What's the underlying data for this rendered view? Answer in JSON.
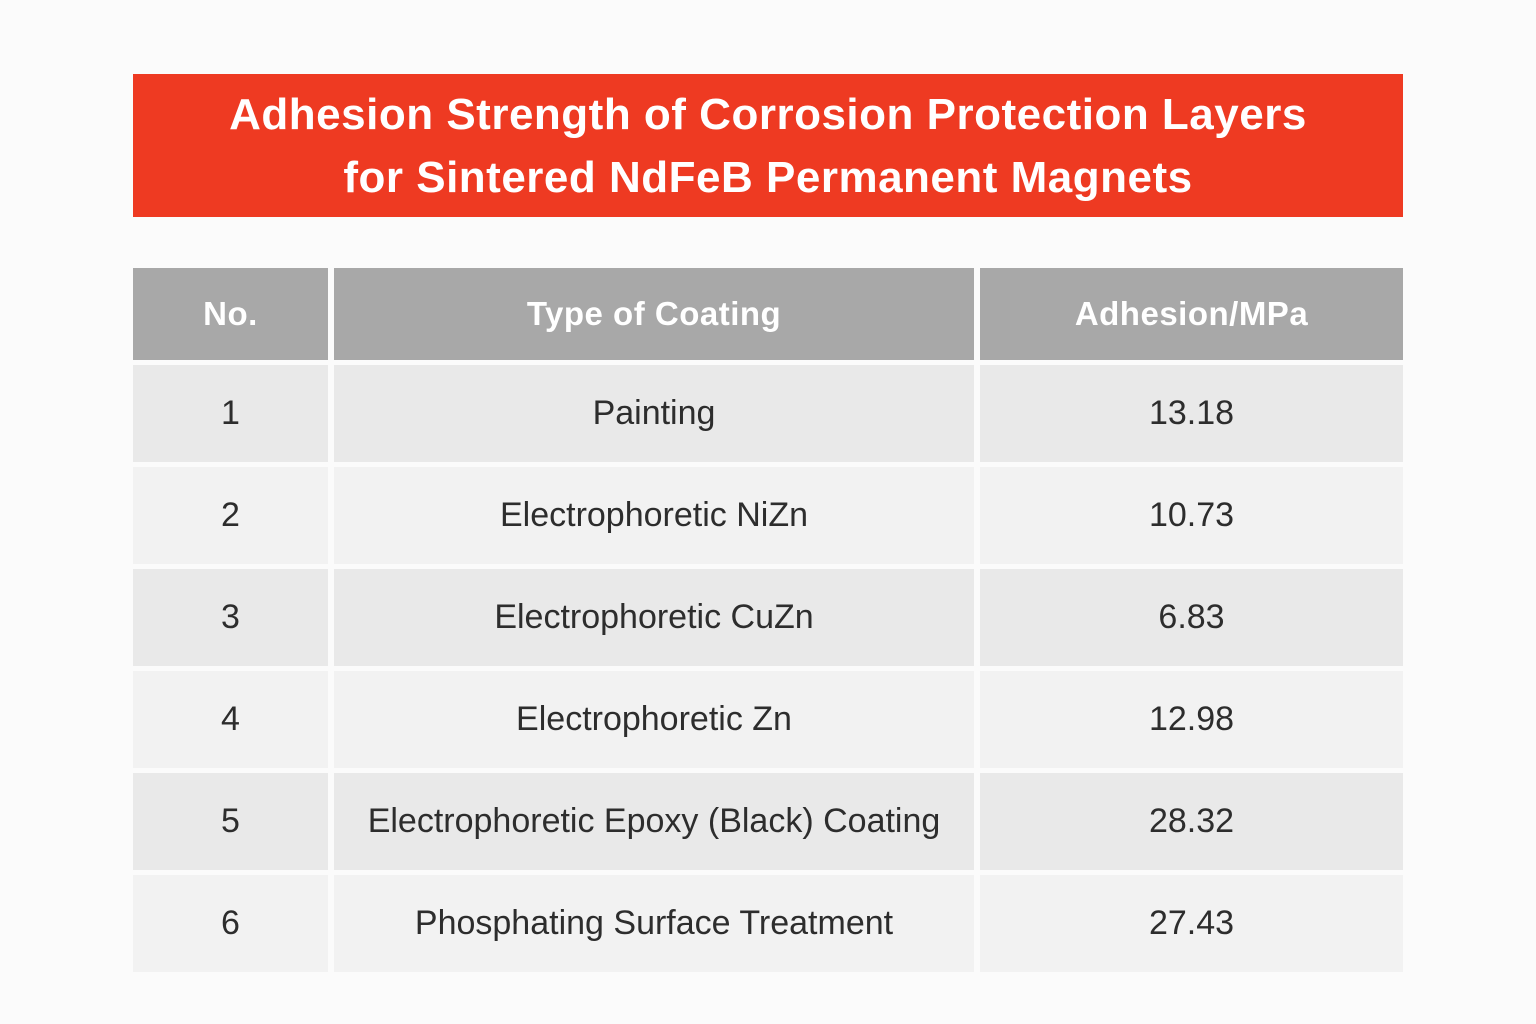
{
  "banner": {
    "background": "#ee3a22",
    "text_color": "#ffffff",
    "title_line1": "Adhesion Strength of Corrosion Protection Layers",
    "title_line2": "for Sintered NdFeB Permanent Magnets"
  },
  "table": {
    "header": {
      "background": "#a8a8a8",
      "text_color": "#ffffff",
      "columns": [
        "No.",
        "Type of Coating",
        "Adhesion/MPa"
      ]
    },
    "row_color_odd": "#e9e9e9",
    "row_color_even": "#f2f2f2",
    "body_text_color": "#2d2d2d",
    "rows": [
      {
        "no": "1",
        "coating": "Painting",
        "adhesion": "13.18"
      },
      {
        "no": "2",
        "coating": "Electrophoretic NiZn",
        "adhesion": "10.73"
      },
      {
        "no": "3",
        "coating": "Electrophoretic CuZn",
        "adhesion": "6.83"
      },
      {
        "no": "4",
        "coating": "Electrophoretic Zn",
        "adhesion": "12.98"
      },
      {
        "no": "5",
        "coating": "Electrophoretic Epoxy (Black) Coating",
        "adhesion": "28.32"
      },
      {
        "no": "6",
        "coating": "Phosphating Surface Treatment",
        "adhesion": "27.43"
      }
    ]
  },
  "chart_data": {
    "type": "table",
    "title": "Adhesion Strength of Corrosion Protection Layers for Sintered NdFeB Permanent Magnets",
    "columns": [
      "No.",
      "Type of Coating",
      "Adhesion/MPa"
    ],
    "rows": [
      [
        1,
        "Painting",
        13.18
      ],
      [
        2,
        "Electrophoretic NiZn",
        10.73
      ],
      [
        3,
        "Electrophoretic CuZn",
        6.83
      ],
      [
        4,
        "Electrophoretic Zn",
        12.98
      ],
      [
        5,
        "Electrophoretic Epoxy (Black) Coating",
        28.32
      ],
      [
        6,
        "Phosphating Surface Treatment",
        27.43
      ]
    ],
    "ylabel": "Adhesion (MPa)"
  }
}
